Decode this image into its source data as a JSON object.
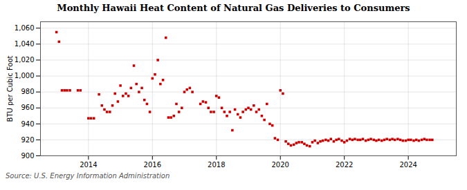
{
  "chart_data": {
    "type": "scatter",
    "title": "Monthly Hawaii Heat Content of Natural Gas Deliveries to Consumers",
    "ylabel": "BTU per Cubic Foot",
    "source": "Source: U.S. Energy Information Administration",
    "color": "#cc0000",
    "marker": "square",
    "grid": true,
    "xlim": [
      2012.5,
      2025.5
    ],
    "xticks": [
      2014,
      2016,
      2018,
      2020,
      2022,
      2024
    ],
    "ylim": [
      900,
      1068
    ],
    "yticks": [
      900,
      920,
      940,
      960,
      980,
      {
        "value": 1000,
        "label": "1,000"
      },
      {
        "value": 1020,
        "label": "1,020"
      },
      {
        "value": 1040,
        "label": "1,040"
      },
      {
        "value": 1060,
        "label": "1,060"
      }
    ],
    "x": [
      2013.0,
      2013.08,
      2013.17,
      2013.25,
      2013.33,
      2013.42,
      2013.67,
      2013.75,
      2014.0,
      2014.08,
      2014.17,
      2014.33,
      2014.42,
      2014.5,
      2014.58,
      2014.67,
      2014.75,
      2014.83,
      2014.92,
      2015.0,
      2015.08,
      2015.17,
      2015.25,
      2015.33,
      2015.42,
      2015.5,
      2015.58,
      2015.67,
      2015.75,
      2015.83,
      2015.92,
      2016.0,
      2016.08,
      2016.17,
      2016.25,
      2016.33,
      2016.42,
      2016.5,
      2016.58,
      2016.67,
      2016.75,
      2016.83,
      2016.92,
      2017.0,
      2017.08,
      2017.17,
      2017.25,
      2017.5,
      2017.58,
      2017.67,
      2017.75,
      2017.83,
      2017.92,
      2018.0,
      2018.08,
      2018.17,
      2018.25,
      2018.33,
      2018.42,
      2018.5,
      2018.58,
      2018.67,
      2018.75,
      2018.83,
      2018.92,
      2019.0,
      2019.08,
      2019.17,
      2019.25,
      2019.33,
      2019.42,
      2019.5,
      2019.58,
      2019.67,
      2019.75,
      2019.83,
      2019.92,
      2020.0,
      2020.08,
      2020.17,
      2020.25,
      2020.33,
      2020.42,
      2020.5,
      2020.58,
      2020.67,
      2020.75,
      2020.83,
      2020.92,
      2021.0,
      2021.08,
      2021.17,
      2021.25,
      2021.33,
      2021.42,
      2021.5,
      2021.58,
      2021.67,
      2021.75,
      2021.83,
      2021.92,
      2022.0,
      2022.08,
      2022.17,
      2022.25,
      2022.33,
      2022.42,
      2022.5,
      2022.58,
      2022.67,
      2022.75,
      2022.83,
      2022.92,
      2023.0,
      2023.08,
      2023.17,
      2023.25,
      2023.33,
      2023.42,
      2023.5,
      2023.58,
      2023.67,
      2023.75,
      2023.83,
      2023.92,
      2024.0,
      2024.08,
      2024.17,
      2024.25,
      2024.33,
      2024.42,
      2024.5,
      2024.58,
      2024.67,
      2024.75
    ],
    "values": [
      1055,
      1043,
      982,
      982,
      982,
      982,
      982,
      982,
      947,
      947,
      947,
      977,
      963,
      958,
      955,
      955,
      963,
      978,
      968,
      988,
      975,
      978,
      975,
      985,
      1013,
      990,
      980,
      985,
      970,
      965,
      955,
      997,
      1002,
      1020,
      990,
      995,
      1048,
      948,
      948,
      950,
      965,
      955,
      960,
      980,
      983,
      985,
      980,
      965,
      968,
      967,
      960,
      955,
      955,
      975,
      973,
      960,
      955,
      950,
      955,
      932,
      958,
      952,
      948,
      955,
      958,
      960,
      958,
      963,
      955,
      958,
      950,
      945,
      965,
      940,
      938,
      922,
      920,
      982,
      978,
      918,
      915,
      913,
      914,
      916,
      917,
      917,
      915,
      913,
      912,
      917,
      919,
      916,
      918,
      919,
      920,
      919,
      921,
      918,
      920,
      921,
      919,
      917,
      919,
      921,
      920,
      921,
      920,
      920,
      921,
      919,
      920,
      921,
      920,
      919,
      920,
      919,
      920,
      921,
      920,
      921,
      920,
      921,
      920,
      919,
      919,
      920,
      920,
      919,
      920,
      919,
      920,
      921,
      920,
      920,
      920
    ]
  }
}
